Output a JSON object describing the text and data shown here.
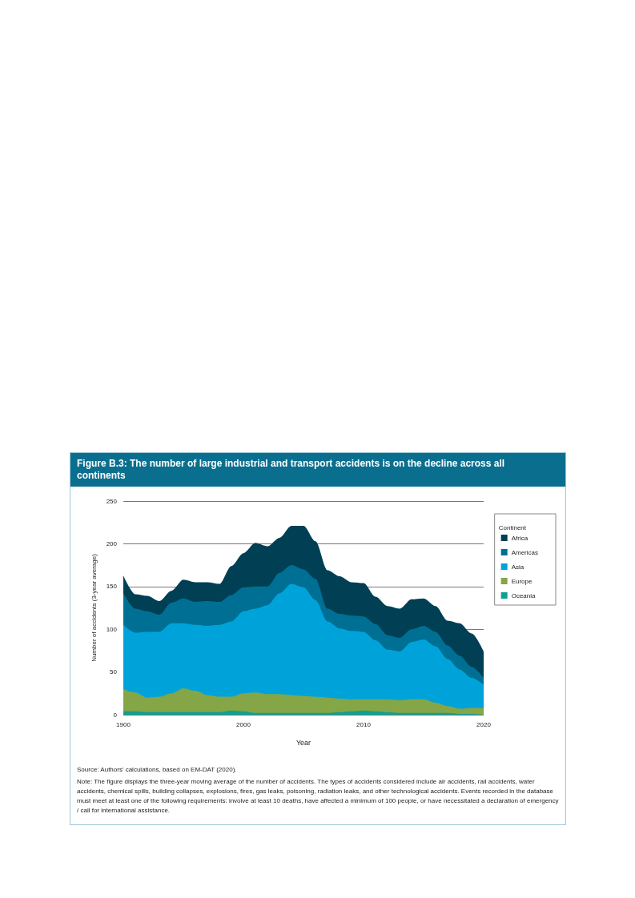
{
  "chart_data": {
    "type": "area",
    "stacked": true,
    "title": "Figure B.3: The number of large industrial and transport accidents is on the decline across all continents",
    "xlabel": "Year",
    "ylabel": "Number of accidents (3-year average)",
    "legend_title": "Continent",
    "categories": [
      "1900",
      null,
      null,
      null,
      null,
      null,
      null,
      null,
      null,
      null,
      "2000",
      null,
      null,
      null,
      null,
      null,
      null,
      null,
      null,
      null,
      "2010",
      null,
      null,
      null,
      null,
      null,
      null,
      null,
      null,
      null,
      "2020"
    ],
    "ylim": [
      0,
      250
    ],
    "yticks": [
      0,
      50,
      100,
      150,
      200,
      250
    ],
    "grid": "y",
    "legend": "right",
    "series": [
      {
        "name": "Oceania",
        "color": "#109f94",
        "values": [
          4,
          4,
          3,
          3,
          3,
          3,
          3,
          3,
          3,
          5,
          4,
          2,
          2,
          2,
          2,
          2,
          2,
          2,
          3,
          4,
          5,
          4,
          3,
          2,
          2,
          2,
          2,
          2,
          1,
          1,
          0
        ]
      },
      {
        "name": "Europe",
        "color": "#84a646",
        "values": [
          26,
          22,
          17,
          18,
          22,
          28,
          25,
          20,
          18,
          16,
          21,
          24,
          22,
          22,
          21,
          20,
          19,
          18,
          16,
          14,
          13,
          14,
          15,
          15,
          16,
          16,
          12,
          8,
          6,
          7,
          8
        ]
      },
      {
        "name": "Asia",
        "color": "#00a3d9",
        "values": [
          75,
          70,
          77,
          76,
          82,
          76,
          77,
          81,
          84,
          88,
          96,
          98,
          104,
          118,
          130,
          127,
          113,
          89,
          82,
          80,
          79,
          69,
          58,
          57,
          67,
          70,
          66,
          55,
          46,
          35,
          27
        ]
      },
      {
        "name": "Americas",
        "color": "#006f94",
        "values": [
          37,
          28,
          24,
          20,
          24,
          29,
          27,
          29,
          27,
          31,
          28,
          26,
          22,
          24,
          22,
          21,
          25,
          15,
          17,
          18,
          18,
          19,
          17,
          16,
          15,
          16,
          17,
          16,
          16,
          13,
          8
        ]
      },
      {
        "name": "Africa",
        "color": "#003f54",
        "values": [
          21,
          17,
          18,
          16,
          14,
          22,
          23,
          22,
          21,
          34,
          40,
          51,
          47,
          41,
          46,
          51,
          44,
          45,
          44,
          39,
          39,
          32,
          34,
          34,
          35,
          32,
          30,
          29,
          38,
          39,
          31
        ]
      }
    ],
    "annotations": [
      "Source: Authors' calculations, based on EM-DAT (2020).",
      "Note: The figure displays the three-year moving average of the number of accidents. The types of accidents considered include air accidents, rail accidents, water accidents, chemical spills, building collapses, explosions, fires, gas leaks, poisoning, radiation leaks, and other technological accidents. Events recorded in the database must meet at least one of the following requirements: involve at least 10 deaths, have affected a minimum of 100 people, or have necessitated a declaration of emergency / call for international assistance."
    ]
  }
}
